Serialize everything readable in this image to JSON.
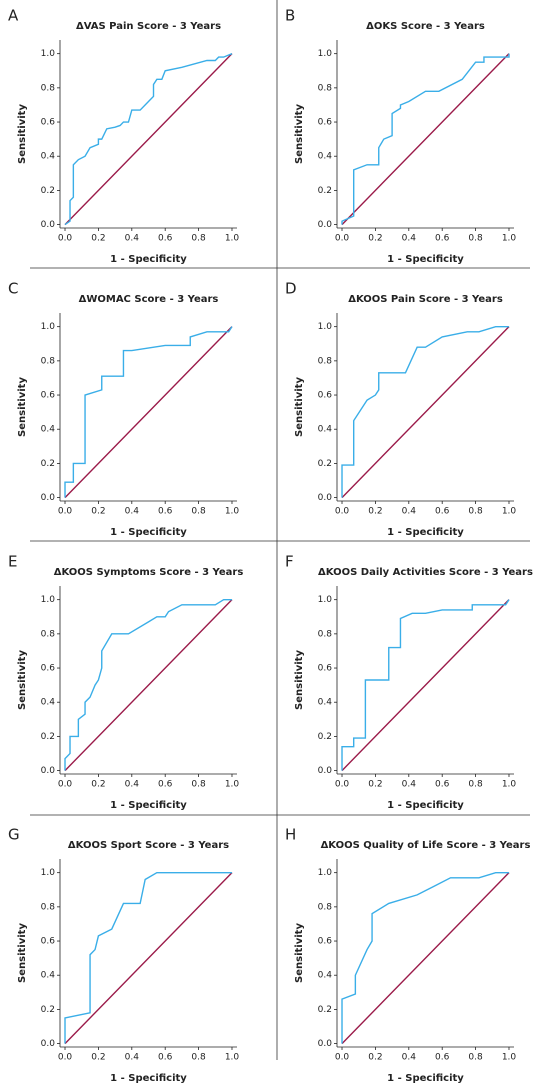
{
  "chart_data": [
    {
      "type": "line",
      "panel": "A",
      "title": "ΔVAS Pain Score - 3 Years",
      "x_label": "1 - Specificity",
      "y_label": "Sensitivity",
      "xlim": [
        -0.03,
        1.03
      ],
      "ylim": [
        -0.02,
        1.08
      ],
      "xticks": [
        {
          "value": 0,
          "label": "0.0"
        },
        0.2,
        0.4,
        0.6,
        0.8,
        {
          "value": 1,
          "label": "1.0"
        }
      ],
      "yticks": [
        {
          "value": 0,
          "label": "0.0"
        },
        0.2,
        0.4,
        0.6,
        0.8,
        {
          "value": 1,
          "label": "1.0"
        }
      ],
      "series": [
        {
          "color": "#3aaee8",
          "x": [
            0,
            0.03,
            0.03,
            0.05,
            0.05,
            0.08,
            0.12,
            0.15,
            0.2,
            0.2,
            0.22,
            0.25,
            0.3,
            0.33,
            0.35,
            0.38,
            0.4,
            0.45,
            0.5,
            0.53,
            0.53,
            0.55,
            0.58,
            0.6,
            0.7,
            0.85,
            0.9,
            0.92,
            0.95,
            1
          ],
          "values": [
            0,
            0.02,
            0.14,
            0.16,
            0.35,
            0.38,
            0.4,
            0.45,
            0.47,
            0.5,
            0.5,
            0.56,
            0.57,
            0.58,
            0.6,
            0.6,
            0.67,
            0.67,
            0.72,
            0.75,
            0.82,
            0.85,
            0.85,
            0.9,
            0.92,
            0.96,
            0.96,
            0.98,
            0.98,
            1
          ]
        },
        {
          "color": "#9b1b4a",
          "x": [
            0,
            1
          ],
          "values": [
            0,
            1
          ]
        }
      ]
    },
    {
      "type": "line",
      "panel": "B",
      "title": "ΔOKS Score - 3 Years",
      "x_label": "1 - Specificity",
      "y_label": "Sensitivity",
      "xlim": [
        -0.03,
        1.03
      ],
      "ylim": [
        -0.02,
        1.08
      ],
      "xticks": [
        {
          "value": 0,
          "label": "0.0"
        },
        0.2,
        0.4,
        0.6,
        0.8,
        {
          "value": 1,
          "label": "1.0"
        }
      ],
      "yticks": [
        {
          "value": 0,
          "label": "0.0"
        },
        0.2,
        0.4,
        0.6,
        0.8,
        {
          "value": 1,
          "label": "1.0"
        }
      ],
      "series": [
        {
          "color": "#3aaee8",
          "x": [
            0,
            0,
            0.07,
            0.07,
            0.15,
            0.22,
            0.22,
            0.25,
            0.3,
            0.3,
            0.35,
            0.35,
            0.4,
            0.5,
            0.58,
            0.72,
            0.8,
            0.85,
            0.85,
            1,
            1
          ],
          "values": [
            0,
            0.02,
            0.05,
            0.32,
            0.35,
            0.35,
            0.45,
            0.5,
            0.52,
            0.65,
            0.68,
            0.7,
            0.72,
            0.78,
            0.78,
            0.85,
            0.95,
            0.95,
            0.98,
            0.98,
            1
          ]
        },
        {
          "color": "#9b1b4a",
          "x": [
            0,
            1
          ],
          "values": [
            0,
            1
          ]
        }
      ]
    },
    {
      "type": "line",
      "panel": "C",
      "title": "ΔWOMAC Score - 3 Years",
      "x_label": "1 - Specificity",
      "y_label": "Sensitivity",
      "xlim": [
        -0.03,
        1.03
      ],
      "ylim": [
        -0.02,
        1.08
      ],
      "xticks": [
        {
          "value": 0,
          "label": "0.0"
        },
        0.2,
        0.4,
        0.6,
        0.8,
        {
          "value": 1,
          "label": "1.0"
        }
      ],
      "yticks": [
        {
          "value": 0,
          "label": "0.0"
        },
        0.2,
        0.4,
        0.6,
        0.8,
        {
          "value": 1,
          "label": "1.0"
        }
      ],
      "series": [
        {
          "color": "#3aaee8",
          "x": [
            0,
            0,
            0.05,
            0.05,
            0.12,
            0.12,
            0.22,
            0.22,
            0.35,
            0.35,
            0.4,
            0.6,
            0.75,
            0.75,
            0.85,
            0.98,
            1
          ],
          "values": [
            0,
            0.09,
            0.09,
            0.2,
            0.2,
            0.6,
            0.63,
            0.71,
            0.71,
            0.86,
            0.86,
            0.89,
            0.89,
            0.94,
            0.97,
            0.97,
            1
          ]
        },
        {
          "color": "#9b1b4a",
          "x": [
            0,
            1
          ],
          "values": [
            0,
            1
          ]
        }
      ]
    },
    {
      "type": "line",
      "panel": "D",
      "title": "ΔKOOS Pain Score - 3 Years",
      "x_label": "1 - Specificity",
      "y_label": "Sensitivity",
      "xlim": [
        -0.03,
        1.03
      ],
      "ylim": [
        -0.02,
        1.08
      ],
      "xticks": [
        {
          "value": 0,
          "label": "0.0"
        },
        0.2,
        0.4,
        0.6,
        0.8,
        {
          "value": 1,
          "label": "1.0"
        }
      ],
      "yticks": [
        {
          "value": 0,
          "label": "0.0"
        },
        0.2,
        0.4,
        0.6,
        0.8,
        {
          "value": 1,
          "label": "1.0"
        }
      ],
      "series": [
        {
          "color": "#3aaee8",
          "x": [
            0,
            0,
            0.07,
            0.07,
            0.15,
            0.2,
            0.22,
            0.22,
            0.38,
            0.45,
            0.5,
            0.6,
            0.75,
            0.82,
            0.92,
            1
          ],
          "values": [
            0,
            0.19,
            0.19,
            0.45,
            0.57,
            0.6,
            0.63,
            0.73,
            0.73,
            0.88,
            0.88,
            0.94,
            0.97,
            0.97,
            1,
            1
          ]
        },
        {
          "color": "#9b1b4a",
          "x": [
            0,
            1
          ],
          "values": [
            0,
            1
          ]
        }
      ]
    },
    {
      "type": "line",
      "panel": "E",
      "title": "ΔKOOS Symptoms Score - 3 Years",
      "x_label": "1 - Specificity",
      "y_label": "Sensitivity",
      "xlim": [
        -0.03,
        1.03
      ],
      "ylim": [
        -0.02,
        1.08
      ],
      "xticks": [
        {
          "value": 0,
          "label": "0.0"
        },
        0.2,
        0.4,
        0.6,
        0.8,
        {
          "value": 1,
          "label": "1.0"
        }
      ],
      "yticks": [
        {
          "value": 0,
          "label": "0.0"
        },
        0.2,
        0.4,
        0.6,
        0.8,
        {
          "value": 1,
          "label": "1.0"
        }
      ],
      "series": [
        {
          "color": "#3aaee8",
          "x": [
            0,
            0,
            0.03,
            0.03,
            0.08,
            0.08,
            0.12,
            0.12,
            0.15,
            0.18,
            0.2,
            0.22,
            0.22,
            0.28,
            0.38,
            0.5,
            0.55,
            0.6,
            0.62,
            0.7,
            0.9,
            0.95,
            1
          ],
          "values": [
            0,
            0.07,
            0.1,
            0.2,
            0.2,
            0.3,
            0.33,
            0.4,
            0.43,
            0.5,
            0.53,
            0.6,
            0.7,
            0.8,
            0.8,
            0.87,
            0.9,
            0.9,
            0.93,
            0.97,
            0.97,
            1,
            1
          ]
        },
        {
          "color": "#9b1b4a",
          "x": [
            0,
            1
          ],
          "values": [
            0,
            1
          ]
        }
      ]
    },
    {
      "type": "line",
      "panel": "F",
      "title": "ΔKOOS Daily Activities Score - 3 Years",
      "x_label": "1 - Specificity",
      "y_label": "Sensitivity",
      "xlim": [
        -0.03,
        1.03
      ],
      "ylim": [
        -0.02,
        1.08
      ],
      "xticks": [
        {
          "value": 0,
          "label": "0.0"
        },
        0.2,
        0.4,
        0.6,
        0.8,
        {
          "value": 1,
          "label": "1.0"
        }
      ],
      "yticks": [
        {
          "value": 0,
          "label": "0.0"
        },
        0.2,
        0.4,
        0.6,
        0.8,
        {
          "value": 1,
          "label": "1.0"
        }
      ],
      "series": [
        {
          "color": "#3aaee8",
          "x": [
            0,
            0,
            0.07,
            0.07,
            0.14,
            0.14,
            0.28,
            0.28,
            0.35,
            0.35,
            0.42,
            0.5,
            0.6,
            0.78,
            0.78,
            0.98,
            1
          ],
          "values": [
            0,
            0.14,
            0.14,
            0.19,
            0.19,
            0.53,
            0.53,
            0.72,
            0.72,
            0.89,
            0.92,
            0.92,
            0.94,
            0.94,
            0.97,
            0.97,
            1
          ]
        },
        {
          "color": "#9b1b4a",
          "x": [
            0,
            1
          ],
          "values": [
            0,
            1
          ]
        }
      ]
    },
    {
      "type": "line",
      "panel": "G",
      "title": "ΔKOOS Sport Score - 3 Years",
      "x_label": "1 - Specificity",
      "y_label": "Sensitivity",
      "xlim": [
        -0.03,
        1.03
      ],
      "ylim": [
        -0.02,
        1.08
      ],
      "xticks": [
        {
          "value": 0,
          "label": "0.0"
        },
        0.2,
        0.4,
        0.6,
        0.8,
        {
          "value": 1,
          "label": "1.0"
        }
      ],
      "yticks": [
        {
          "value": 0,
          "label": "0.0"
        },
        0.2,
        0.4,
        0.6,
        0.8,
        {
          "value": 1,
          "label": "1.0"
        }
      ],
      "series": [
        {
          "color": "#3aaee8",
          "x": [
            0,
            0,
            0.15,
            0.15,
            0.18,
            0.2,
            0.28,
            0.35,
            0.45,
            0.48,
            0.55,
            1
          ],
          "values": [
            0,
            0.15,
            0.18,
            0.52,
            0.55,
            0.63,
            0.67,
            0.82,
            0.82,
            0.96,
            1,
            1
          ]
        },
        {
          "color": "#9b1b4a",
          "x": [
            0,
            1
          ],
          "values": [
            0,
            1
          ]
        }
      ]
    },
    {
      "type": "line",
      "panel": "H",
      "title": "ΔKOOS Quality of Life Score - 3 Years",
      "x_label": "1 - Specificity",
      "y_label": "Sensitivity",
      "xlim": [
        -0.03,
        1.03
      ],
      "ylim": [
        -0.02,
        1.08
      ],
      "xticks": [
        {
          "value": 0,
          "label": "0.0"
        },
        0.2,
        0.4,
        0.6,
        0.8,
        {
          "value": 1,
          "label": "1.0"
        }
      ],
      "yticks": [
        {
          "value": 0,
          "label": "0.0"
        },
        0.2,
        0.4,
        0.6,
        0.8,
        {
          "value": 1,
          "label": "1.0"
        }
      ],
      "series": [
        {
          "color": "#3aaee8",
          "x": [
            0,
            0,
            0.08,
            0.08,
            0.15,
            0.18,
            0.18,
            0.28,
            0.45,
            0.55,
            0.65,
            0.82,
            0.92,
            1
          ],
          "values": [
            0,
            0.26,
            0.29,
            0.4,
            0.55,
            0.6,
            0.76,
            0.82,
            0.87,
            0.92,
            0.97,
            0.97,
            1,
            1
          ]
        },
        {
          "color": "#9b1b4a",
          "x": [
            0,
            1
          ],
          "values": [
            0,
            1
          ]
        }
      ]
    }
  ]
}
